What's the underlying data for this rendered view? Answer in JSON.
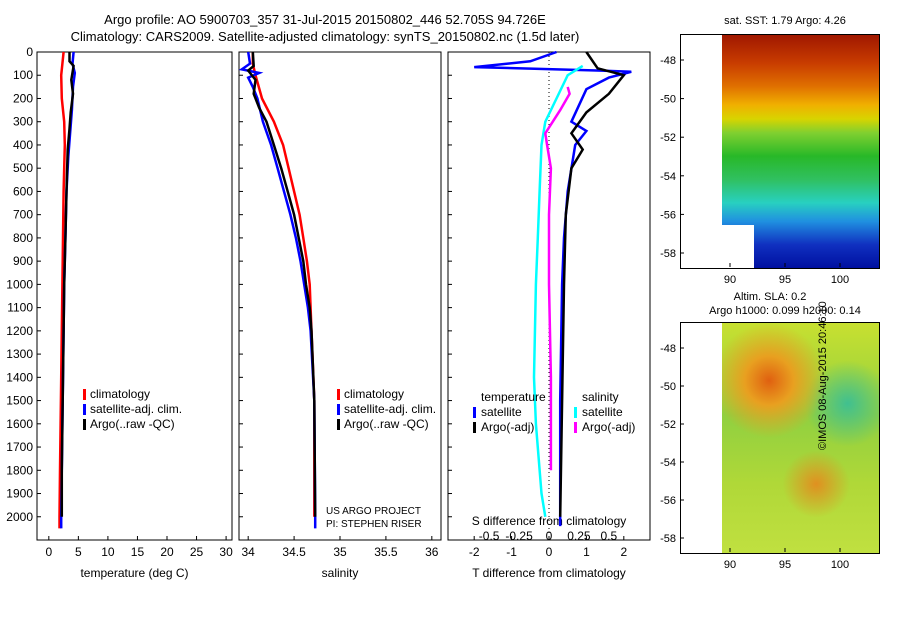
{
  "header": {
    "line1": "Argo profile: AO 5900703_357 31-Jul-2015 20150802_446 52.705S 94.726E",
    "line2": "Climatology: CARS2009. Satellite-adjusted climatology: synTS_20150802.nc (1.5d later)"
  },
  "sst_map": {
    "title": "sat. SST: 1.79 Argo: 4.26",
    "yticks": [
      "-48",
      "-50",
      "-52",
      "-54",
      "-56",
      "-58"
    ],
    "xticks": [
      "90",
      "95",
      "100"
    ]
  },
  "sla_map": {
    "title_line1": "Altim. SLA: 0.2",
    "title_line2": "Argo h1000: 0.099 h2000: 0.14",
    "yticks": [
      "-48",
      "-50",
      "-52",
      "-54",
      "-56",
      "-58"
    ],
    "xticks": [
      "90",
      "95",
      "100"
    ]
  },
  "credit": "©IMOS 08-Aug-2015 20:46:10",
  "project": {
    "line1": "US ARGO PROJECT",
    "line2": "PI: STEPHEN RISER"
  },
  "colors": {
    "climatology": "#ff0000",
    "satellite": "#0000ff",
    "argo": "#000000",
    "sal_satellite": "#00ffff",
    "sal_argo": "#ff00ff"
  },
  "chart_data": [
    {
      "type": "line",
      "xlabel": "temperature (deg C)",
      "xlim": [
        -2,
        31
      ],
      "ylim": [
        0,
        2100
      ],
      "xticks": [
        0,
        5,
        10,
        15,
        20,
        25,
        30
      ],
      "yticks": [
        0,
        100,
        200,
        300,
        400,
        500,
        600,
        700,
        800,
        900,
        1000,
        1100,
        1200,
        1300,
        1400,
        1500,
        1600,
        1700,
        1800,
        1900,
        2000
      ],
      "legend": [
        "climatology",
        "satellite-adj. clim.",
        "Argo(..raw -QC)"
      ],
      "series": [
        {
          "name": "climatology",
          "color": "#ff0000",
          "points": [
            [
              2.5,
              0
            ],
            [
              2.3,
              50
            ],
            [
              2.1,
              100
            ],
            [
              2.2,
              200
            ],
            [
              2.6,
              300
            ],
            [
              2.7,
              400
            ],
            [
              2.6,
              500
            ],
            [
              2.5,
              600
            ],
            [
              2.4,
              800
            ],
            [
              2.3,
              1000
            ],
            [
              2.2,
              1200
            ],
            [
              2.1,
              1400
            ],
            [
              2.0,
              1600
            ],
            [
              1.9,
              1800
            ],
            [
              1.8,
              2000
            ],
            [
              1.8,
              2050
            ]
          ]
        },
        {
          "name": "satellite-adj. clim.",
          "color": "#0000ff",
          "points": [
            [
              4.2,
              0
            ],
            [
              4.0,
              50
            ],
            [
              4.4,
              90
            ],
            [
              4.1,
              150
            ],
            [
              3.9,
              250
            ],
            [
              3.6,
              350
            ],
            [
              3.3,
              450
            ],
            [
              3.0,
              600
            ],
            [
              2.8,
              800
            ],
            [
              2.6,
              1000
            ],
            [
              2.5,
              1200
            ],
            [
              2.4,
              1400
            ],
            [
              2.3,
              1600
            ],
            [
              2.2,
              1800
            ],
            [
              2.1,
              2000
            ],
            [
              2.1,
              2050
            ]
          ]
        },
        {
          "name": "Argo(..raw -QC)",
          "color": "#000000",
          "points": [
            [
              3.5,
              0
            ],
            [
              3.5,
              40
            ],
            [
              4.2,
              60
            ],
            [
              3.8,
              120
            ],
            [
              4.1,
              180
            ],
            [
              3.7,
              260
            ],
            [
              3.5,
              330
            ],
            [
              3.2,
              420
            ],
            [
              3.0,
              600
            ],
            [
              2.8,
              800
            ],
            [
              2.6,
              1000
            ],
            [
              2.5,
              1200
            ],
            [
              2.4,
              1400
            ],
            [
              2.3,
              1600
            ],
            [
              2.2,
              1800
            ],
            [
              2.2,
              2000
            ]
          ]
        }
      ]
    },
    {
      "type": "line",
      "xlabel": "salinity",
      "xlim": [
        33.9,
        36.1
      ],
      "ylim": [
        0,
        2100
      ],
      "xticks": [
        34,
        34.5,
        35,
        35.5,
        36
      ],
      "legend": [
        "climatology",
        "satellite-adj. clim.",
        "Argo(..raw -QC)"
      ],
      "series": [
        {
          "name": "climatology",
          "color": "#ff0000",
          "points": [
            [
              34.05,
              0
            ],
            [
              34.05,
              50
            ],
            [
              34.08,
              100
            ],
            [
              34.15,
              200
            ],
            [
              34.28,
              300
            ],
            [
              34.38,
              400
            ],
            [
              34.44,
              500
            ],
            [
              34.5,
              600
            ],
            [
              34.56,
              700
            ],
            [
              34.6,
              800
            ],
            [
              34.64,
              900
            ],
            [
              34.67,
              1000
            ],
            [
              34.69,
              1200
            ],
            [
              34.72,
              1500
            ],
            [
              34.72,
              2000
            ]
          ]
        },
        {
          "name": "satellite-adj. clim.",
          "color": "#0000ff",
          "points": [
            [
              34.0,
              0
            ],
            [
              34.02,
              50
            ],
            [
              33.93,
              75
            ],
            [
              34.12,
              90
            ],
            [
              34.0,
              110
            ],
            [
              34.05,
              150
            ],
            [
              34.1,
              200
            ],
            [
              34.16,
              300
            ],
            [
              34.25,
              400
            ],
            [
              34.32,
              500
            ],
            [
              34.39,
              600
            ],
            [
              34.46,
              700
            ],
            [
              34.52,
              800
            ],
            [
              34.57,
              900
            ],
            [
              34.61,
              1000
            ],
            [
              34.65,
              1100
            ],
            [
              34.68,
              1200
            ],
            [
              34.72,
              1500
            ],
            [
              34.73,
              2000
            ],
            [
              34.73,
              2050
            ]
          ]
        },
        {
          "name": "Argo(..raw -QC)",
          "color": "#000000",
          "points": [
            [
              34.05,
              0
            ],
            [
              34.06,
              60
            ],
            [
              34.0,
              80
            ],
            [
              34.08,
              120
            ],
            [
              34.06,
              180
            ],
            [
              34.12,
              240
            ],
            [
              34.2,
              300
            ],
            [
              34.28,
              400
            ],
            [
              34.36,
              500
            ],
            [
              34.43,
              600
            ],
            [
              34.5,
              700
            ],
            [
              34.55,
              800
            ],
            [
              34.6,
              900
            ],
            [
              34.63,
              1000
            ],
            [
              34.67,
              1100
            ],
            [
              34.69,
              1200
            ],
            [
              34.72,
              1500
            ],
            [
              34.73,
              2000
            ]
          ]
        }
      ]
    },
    {
      "type": "line",
      "xlabel": "T difference from climatology",
      "xlabel_top": "S difference from climatology",
      "xlim": [
        -2.7,
        2.7
      ],
      "ylim": [
        0,
        2100
      ],
      "xticks": [
        -2,
        -1,
        0,
        1,
        2
      ],
      "xticks_top": [
        "-0.5",
        "-0.25",
        "0",
        "0.25",
        "0.5"
      ],
      "legend_titles": [
        "temperature",
        "salinity"
      ],
      "legend": [
        "satellite",
        "Argo(-adj)",
        "satellite",
        "Argo(-adj)"
      ],
      "series": [
        {
          "name": "satellite",
          "group": "temperature",
          "color": "#0000ff",
          "points": [
            [
              0.2,
              0
            ],
            [
              -0.5,
              40
            ],
            [
              -2.0,
              65
            ],
            [
              1.4,
              80
            ],
            [
              2.2,
              85
            ],
            [
              1.6,
              110
            ],
            [
              1.0,
              160
            ],
            [
              0.6,
              300
            ],
            [
              1.0,
              340
            ],
            [
              0.7,
              400
            ],
            [
              0.5,
              600
            ],
            [
              0.4,
              800
            ],
            [
              0.35,
              1000
            ],
            [
              0.3,
              1500
            ],
            [
              0.3,
              2000
            ],
            [
              0.3,
              2040
            ]
          ]
        },
        {
          "name": "Argo(-adj)",
          "group": "temperature",
          "color": "#000000",
          "points": [
            [
              1.0,
              0
            ],
            [
              1.3,
              70
            ],
            [
              2.0,
              100
            ],
            [
              1.6,
              180
            ],
            [
              1.0,
              260
            ],
            [
              0.6,
              350
            ],
            [
              0.9,
              420
            ],
            [
              0.6,
              500
            ],
            [
              0.45,
              700
            ],
            [
              0.4,
              1000
            ],
            [
              0.35,
              1500
            ],
            [
              0.3,
              2000
            ]
          ]
        },
        {
          "name": "satellite",
          "group": "salinity",
          "color": "#00ffff",
          "points": [
            [
              0.9,
              60
            ],
            [
              0.5,
              100
            ],
            [
              0.2,
              200
            ],
            [
              -0.1,
              300
            ],
            [
              -0.2,
              400
            ],
            [
              -0.25,
              600
            ],
            [
              -0.3,
              800
            ],
            [
              -0.35,
              1000
            ],
            [
              -0.4,
              1400
            ],
            [
              -0.35,
              1600
            ],
            [
              -0.2,
              1900
            ],
            [
              -0.1,
              2000
            ]
          ]
        },
        {
          "name": "Argo(-adj)",
          "group": "salinity",
          "color": "#ff00ff",
          "points": [
            [
              0.5,
              150
            ],
            [
              0.55,
              180
            ],
            [
              0.3,
              250
            ],
            [
              -0.1,
              350
            ],
            [
              -0.05,
              400
            ],
            [
              0.05,
              500
            ],
            [
              0.0,
              700
            ],
            [
              0.0,
              1000
            ],
            [
              0.05,
              1400
            ],
            [
              0.05,
              1600
            ],
            [
              0.05,
              1800
            ]
          ]
        }
      ]
    }
  ]
}
